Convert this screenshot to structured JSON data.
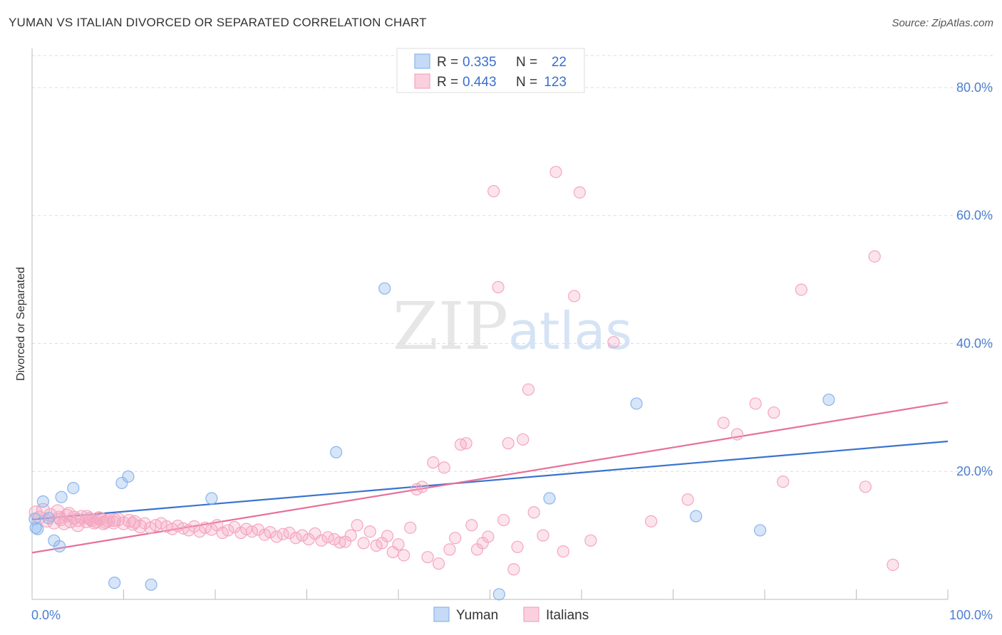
{
  "header": {
    "title": "YUMAN VS ITALIAN DIVORCED OR SEPARATED CORRELATION CHART",
    "source": "Source: ZipAtlas.com"
  },
  "watermark": {
    "zip": "ZIP",
    "atlas": "atlas"
  },
  "legend": {
    "rows": [
      {
        "r_label": "R =",
        "r_value": "0.335",
        "n_label": "N =",
        "n_value": "22",
        "color": "#8ab4ec"
      },
      {
        "r_label": "R =",
        "r_value": "0.443",
        "n_label": "N =",
        "n_value": "123",
        "color": "#f4a6bf"
      }
    ]
  },
  "bottom_legend": {
    "yuman": "Yuman",
    "italians": "Italians"
  },
  "chart_data": {
    "type": "scatter",
    "title": "YUMAN VS ITALIAN DIVORCED OR SEPARATED CORRELATION CHART",
    "xlabel": "",
    "ylabel": "Divorced or Separated",
    "xlim": [
      0,
      100
    ],
    "ylim": [
      0,
      85
    ],
    "x_tick_labels": [
      "0.0%",
      "100.0%"
    ],
    "y_ticks": [
      20,
      40,
      60,
      80
    ],
    "y_tick_labels": [
      "20.0%",
      "40.0%",
      "60.0%",
      "80.0%"
    ],
    "grid": true,
    "legend_position": "top-center",
    "series": [
      {
        "name": "Yuman",
        "color": "#8ab4ec",
        "trend": [
          [
            0,
            12.5
          ],
          [
            100,
            24.7
          ]
        ],
        "points": [
          [
            0.3,
            12.6
          ],
          [
            0.4,
            11.2
          ],
          [
            0.6,
            11.0
          ],
          [
            1.2,
            15.3
          ],
          [
            1.8,
            12.7
          ],
          [
            2.4,
            9.2
          ],
          [
            3.0,
            8.3
          ],
          [
            3.2,
            16.0
          ],
          [
            4.5,
            17.4
          ],
          [
            9.0,
            2.6
          ],
          [
            9.8,
            18.2
          ],
          [
            10.5,
            19.2
          ],
          [
            13.0,
            2.3
          ],
          [
            19.6,
            15.8
          ],
          [
            33.2,
            23.0
          ],
          [
            38.5,
            48.6
          ],
          [
            51.0,
            0.8
          ],
          [
            56.5,
            15.8
          ],
          [
            66.0,
            30.6
          ],
          [
            72.5,
            13.0
          ],
          [
            79.5,
            10.8
          ],
          [
            87.0,
            31.2
          ]
        ]
      },
      {
        "name": "Italians",
        "color": "#f4a6bf",
        "trend": [
          [
            0,
            7.3
          ],
          [
            100,
            30.8
          ]
        ],
        "points": [
          [
            0.4,
            13.6
          ],
          [
            0.8,
            12.8
          ],
          [
            1.2,
            14.0
          ],
          [
            1.6,
            12.3
          ],
          [
            2.0,
            13.2
          ],
          [
            2.4,
            12.0
          ],
          [
            2.8,
            13.8
          ],
          [
            3.1,
            12.5
          ],
          [
            3.5,
            11.9
          ],
          [
            3.8,
            13.1
          ],
          [
            4.2,
            12.2
          ],
          [
            4.6,
            12.8
          ],
          [
            5.0,
            11.6
          ],
          [
            5.4,
            12.9
          ],
          [
            5.9,
            12.2
          ],
          [
            6.3,
            12.6
          ],
          [
            6.8,
            12.0
          ],
          [
            7.3,
            12.7
          ],
          [
            7.8,
            11.9
          ],
          [
            8.3,
            12.3
          ],
          [
            8.9,
            12.0
          ],
          [
            9.4,
            12.5
          ],
          [
            10.0,
            11.9
          ],
          [
            10.6,
            12.3
          ],
          [
            11.2,
            12.1
          ],
          [
            11.8,
            11.4
          ],
          [
            12.3,
            11.9
          ],
          [
            12.9,
            11.2
          ],
          [
            13.5,
            11.6
          ],
          [
            14.1,
            11.9
          ],
          [
            14.7,
            11.4
          ],
          [
            15.3,
            11.0
          ],
          [
            15.9,
            11.5
          ],
          [
            16.5,
            11.1
          ],
          [
            17.1,
            10.8
          ],
          [
            17.7,
            11.4
          ],
          [
            18.3,
            10.6
          ],
          [
            18.9,
            11.2
          ],
          [
            19.6,
            10.9
          ],
          [
            20.2,
            11.6
          ],
          [
            20.8,
            10.4
          ],
          [
            21.4,
            10.8
          ],
          [
            22.1,
            11.3
          ],
          [
            22.8,
            10.4
          ],
          [
            23.4,
            11.0
          ],
          [
            24.0,
            10.6
          ],
          [
            24.7,
            10.9
          ],
          [
            25.4,
            10.1
          ],
          [
            26.0,
            10.5
          ],
          [
            26.7,
            9.8
          ],
          [
            27.4,
            10.2
          ],
          [
            28.1,
            10.4
          ],
          [
            28.8,
            9.6
          ],
          [
            29.5,
            10.0
          ],
          [
            30.2,
            9.4
          ],
          [
            30.9,
            10.3
          ],
          [
            31.6,
            9.2
          ],
          [
            32.3,
            9.7
          ],
          [
            33.0,
            9.4
          ],
          [
            33.6,
            8.9
          ],
          [
            34.2,
            9.0
          ],
          [
            34.8,
            10.0
          ],
          [
            35.5,
            11.6
          ],
          [
            36.2,
            8.8
          ],
          [
            36.9,
            10.6
          ],
          [
            37.6,
            8.4
          ],
          [
            38.2,
            8.8
          ],
          [
            38.8,
            9.9
          ],
          [
            39.4,
            7.4
          ],
          [
            40.0,
            8.6
          ],
          [
            40.6,
            6.9
          ],
          [
            41.3,
            11.2
          ],
          [
            42.0,
            17.2
          ],
          [
            42.6,
            17.6
          ],
          [
            43.2,
            6.6
          ],
          [
            43.8,
            21.4
          ],
          [
            44.4,
            5.6
          ],
          [
            45.0,
            20.6
          ],
          [
            45.6,
            7.8
          ],
          [
            46.2,
            9.6
          ],
          [
            46.8,
            24.2
          ],
          [
            47.4,
            24.4
          ],
          [
            48.0,
            11.6
          ],
          [
            48.6,
            7.8
          ],
          [
            49.2,
            8.8
          ],
          [
            49.8,
            9.8
          ],
          [
            50.4,
            63.8
          ],
          [
            50.9,
            48.8
          ],
          [
            51.5,
            12.4
          ],
          [
            52.0,
            24.4
          ],
          [
            52.6,
            4.7
          ],
          [
            53.0,
            8.2
          ],
          [
            53.6,
            25.0
          ],
          [
            54.2,
            32.8
          ],
          [
            54.8,
            13.6
          ],
          [
            55.8,
            10.0
          ],
          [
            57.2,
            66.8
          ],
          [
            58.0,
            7.5
          ],
          [
            59.2,
            47.4
          ],
          [
            59.8,
            63.6
          ],
          [
            61.0,
            9.2
          ],
          [
            63.5,
            40.2
          ],
          [
            67.6,
            12.2
          ],
          [
            71.6,
            15.6
          ],
          [
            75.5,
            27.6
          ],
          [
            77.0,
            25.8
          ],
          [
            79.0,
            30.6
          ],
          [
            81.0,
            29.2
          ],
          [
            82.0,
            18.4
          ],
          [
            84.0,
            48.4
          ],
          [
            91.0,
            17.6
          ],
          [
            92.0,
            53.6
          ],
          [
            94.0,
            5.4
          ],
          [
            3.0,
            12.8
          ],
          [
            4.0,
            13.4
          ],
          [
            5.0,
            12.4
          ],
          [
            6.0,
            12.9
          ],
          [
            6.5,
            12.4
          ],
          [
            7.0,
            12.2
          ],
          [
            7.5,
            12.6
          ],
          [
            8.0,
            12.1
          ],
          [
            9.0,
            12.4
          ],
          [
            11.0,
            11.8
          ]
        ]
      }
    ]
  }
}
